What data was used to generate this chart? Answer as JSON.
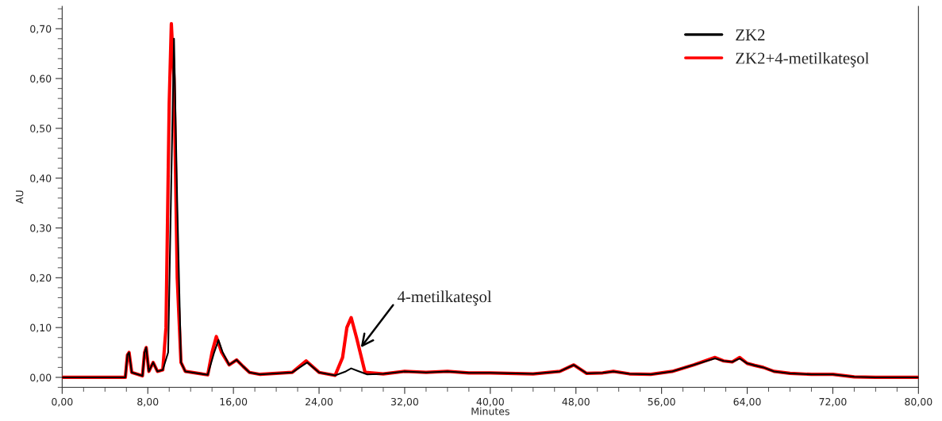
{
  "chart_data": {
    "type": "line",
    "xlabel": "Minutes",
    "ylabel": "AU",
    "xlim": [
      0,
      80
    ],
    "ylim": [
      -0.02,
      0.745
    ],
    "xticks": [
      {
        "value": 0,
        "label": "0,00"
      },
      {
        "value": 8,
        "label": "8,00"
      },
      {
        "value": 16,
        "label": "16,00"
      },
      {
        "value": 24,
        "label": "24,00"
      },
      {
        "value": 32,
        "label": "32,00"
      },
      {
        "value": 40,
        "label": "40,00"
      },
      {
        "value": 48,
        "label": "48,00"
      },
      {
        "value": 56,
        "label": "56,00"
      },
      {
        "value": 64,
        "label": "64,00"
      },
      {
        "value": 72,
        "label": "72,00"
      },
      {
        "value": 80,
        "label": "80,00"
      }
    ],
    "yticks": [
      {
        "value": 0,
        "label": "0,00"
      },
      {
        "value": 0.1,
        "label": "0,10"
      },
      {
        "value": 0.2,
        "label": "0,20"
      },
      {
        "value": 0.3,
        "label": "0,30"
      },
      {
        "value": 0.4,
        "label": "0,40"
      },
      {
        "value": 0.5,
        "label": "0,50"
      },
      {
        "value": 0.6,
        "label": "0,60"
      },
      {
        "value": 0.7,
        "label": "0,70"
      }
    ],
    "grid": false,
    "legend": "top right",
    "marker": "none",
    "line_style": "solid",
    "annotations": [
      {
        "text": "4-metilkateşol",
        "x": 27.9,
        "y": 0.06
      }
    ],
    "series": [
      {
        "name": "ZK2",
        "color": "#000000",
        "x": [
          0,
          5.9,
          6.1,
          6.25,
          6.5,
          7.5,
          7.7,
          7.85,
          8.1,
          8.5,
          8.9,
          9.4,
          9.9,
          10.2,
          10.45,
          10.75,
          11.1,
          11.5,
          13.6,
          14.2,
          14.6,
          15.0,
          15.6,
          16.3,
          16.9,
          17.5,
          18.5,
          21.5,
          22.9,
          24.0,
          25.5,
          26.5,
          27.0,
          27.6,
          28.5,
          30,
          32,
          34,
          36,
          38,
          40,
          44,
          46.5,
          47.8,
          49,
          50.5,
          51.5,
          53,
          55,
          57,
          59,
          61,
          61.8,
          62.6,
          63.3,
          64,
          64.7,
          65.5,
          66.5,
          68,
          70,
          72,
          74,
          76,
          80
        ],
        "values": [
          0,
          0,
          0.045,
          0.05,
          0.01,
          0.003,
          0.05,
          0.06,
          0.012,
          0.03,
          0.012,
          0.015,
          0.05,
          0.4,
          0.68,
          0.35,
          0.03,
          0.012,
          0.005,
          0.05,
          0.075,
          0.05,
          0.025,
          0.035,
          0.022,
          0.01,
          0.006,
          0.01,
          0.03,
          0.01,
          0.004,
          0.012,
          0.018,
          0.013,
          0.006,
          0.007,
          0.012,
          0.01,
          0.012,
          0.009,
          0.009,
          0.007,
          0.012,
          0.025,
          0.008,
          0.009,
          0.012,
          0.007,
          0.006,
          0.012,
          0.025,
          0.038,
          0.033,
          0.031,
          0.038,
          0.028,
          0.024,
          0.02,
          0.012,
          0.008,
          0.006,
          0.006,
          0.001,
          0,
          0
        ]
      },
      {
        "name": "ZK2+4-metilkateşol",
        "color": "#ff0000",
        "x": [
          0,
          5.9,
          6.1,
          6.25,
          6.5,
          7.5,
          7.7,
          7.85,
          8.1,
          8.5,
          8.9,
          9.4,
          9.7,
          10.0,
          10.2,
          10.45,
          10.75,
          11.1,
          11.5,
          13.6,
          14.0,
          14.4,
          14.9,
          15.6,
          16.3,
          16.9,
          17.5,
          18.5,
          21.5,
          22.8,
          24.0,
          25.5,
          26.2,
          26.6,
          27.0,
          27.5,
          28.3,
          30,
          32,
          34,
          36,
          38,
          40,
          44,
          46.5,
          47.8,
          49,
          50.5,
          51.5,
          53,
          55,
          57,
          59,
          61,
          61.8,
          62.6,
          63.3,
          64,
          64.7,
          65.5,
          66.5,
          68,
          70,
          72,
          74,
          76,
          80
        ],
        "values": [
          0,
          0,
          0.045,
          0.05,
          0.01,
          0.003,
          0.05,
          0.06,
          0.012,
          0.03,
          0.012,
          0.015,
          0.1,
          0.55,
          0.71,
          0.6,
          0.2,
          0.03,
          0.012,
          0.005,
          0.05,
          0.082,
          0.05,
          0.025,
          0.035,
          0.022,
          0.01,
          0.006,
          0.01,
          0.033,
          0.01,
          0.004,
          0.04,
          0.1,
          0.12,
          0.08,
          0.01,
          0.007,
          0.012,
          0.01,
          0.012,
          0.009,
          0.009,
          0.007,
          0.012,
          0.025,
          0.008,
          0.009,
          0.012,
          0.007,
          0.006,
          0.012,
          0.025,
          0.04,
          0.033,
          0.031,
          0.04,
          0.028,
          0.024,
          0.02,
          0.012,
          0.008,
          0.006,
          0.006,
          0.001,
          0,
          0
        ]
      }
    ]
  }
}
